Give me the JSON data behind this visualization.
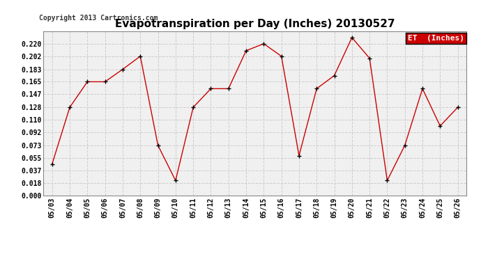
{
  "title": "Evapotranspiration per Day (Inches) 20130527",
  "copyright": "Copyright 2013 Cartronics.com",
  "legend_label": "ET  (Inches)",
  "legend_bg": "#cc0000",
  "legend_text_color": "#ffffff",
  "x_labels": [
    "05/03",
    "05/04",
    "05/05",
    "05/06",
    "05/07",
    "05/08",
    "05/09",
    "05/10",
    "05/11",
    "05/12",
    "05/13",
    "05/14",
    "05/15",
    "05/16",
    "05/17",
    "05/18",
    "05/19",
    "05/20",
    "05/21",
    "05/22",
    "05/23",
    "05/24",
    "05/25",
    "05/26"
  ],
  "y_values": [
    0.046,
    0.128,
    0.165,
    0.165,
    0.183,
    0.202,
    0.073,
    0.022,
    0.128,
    0.155,
    0.155,
    0.21,
    0.22,
    0.202,
    0.058,
    0.155,
    0.174,
    0.229,
    0.199,
    0.022,
    0.073,
    0.155,
    0.101,
    0.128
  ],
  "y_ticks": [
    0.0,
    0.018,
    0.037,
    0.055,
    0.073,
    0.092,
    0.11,
    0.128,
    0.147,
    0.165,
    0.183,
    0.202,
    0.22
  ],
  "ylim": [
    0.0,
    0.238
  ],
  "line_color": "#cc0000",
  "marker_color": "#000000",
  "bg_color": "#ffffff",
  "plot_bg_color": "#f0f0f0",
  "grid_color": "#cccccc",
  "title_fontsize": 11,
  "copyright_fontsize": 7,
  "tick_fontsize": 7,
  "legend_fontsize": 8
}
